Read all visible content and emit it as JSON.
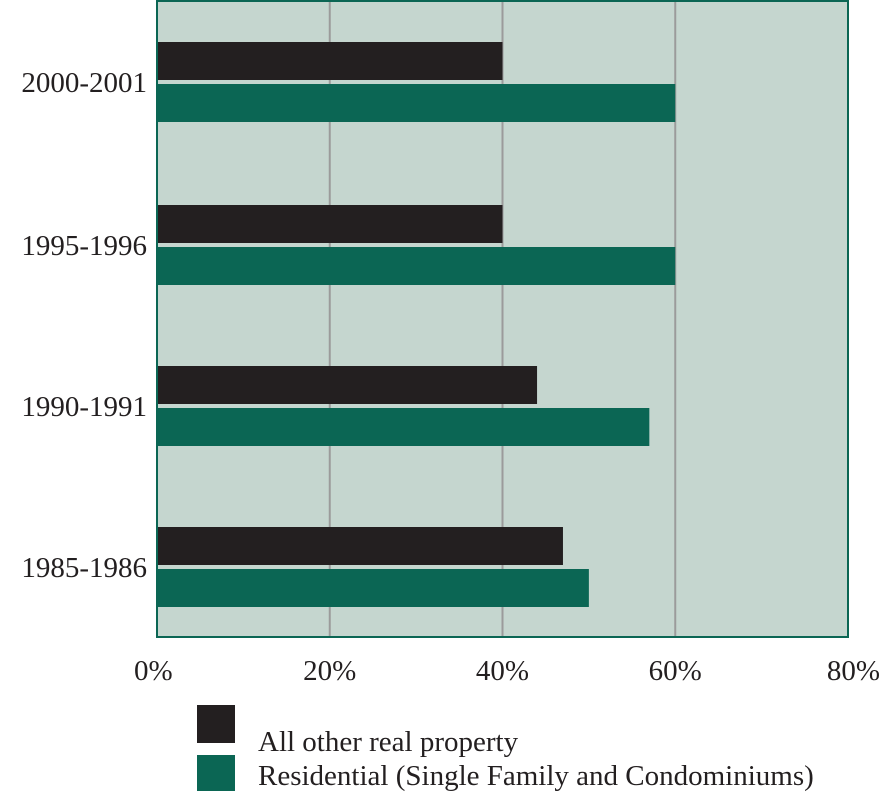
{
  "chart_data": {
    "type": "bar",
    "orientation": "horizontal",
    "categories": [
      "2000-2001",
      "1995-1996",
      "1990-1991",
      "1985-1986"
    ],
    "series": [
      {
        "name": "All other real property",
        "color": "#231f20",
        "values": [
          40,
          40,
          44,
          47
        ]
      },
      {
        "name": "Residential (Single Family and Condominiums)",
        "color": "#0b6654",
        "values": [
          60,
          60,
          57,
          50
        ]
      }
    ],
    "xlim": [
      0,
      80
    ],
    "xticks": [
      "0%",
      "20%",
      "40%",
      "60%",
      "80%"
    ],
    "grid": true,
    "legend_placement": "bottom",
    "background_color": "#c5d6cf",
    "frame_color": "#0b6654",
    "gridline_color": "#9b9b9b"
  }
}
